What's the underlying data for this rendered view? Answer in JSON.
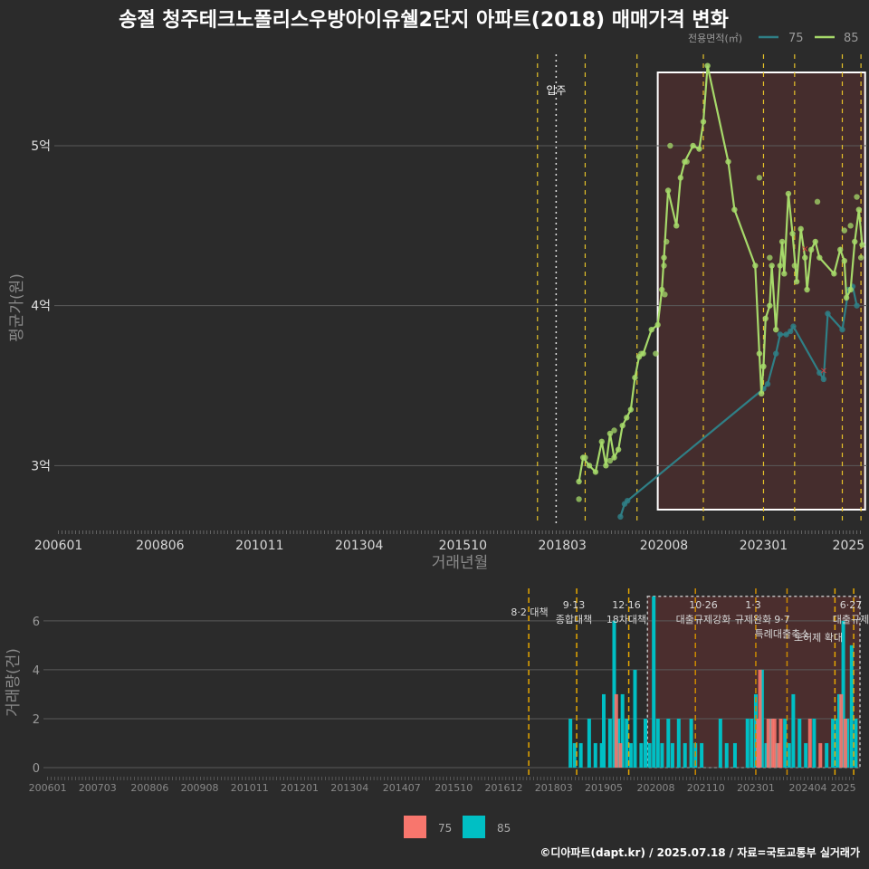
{
  "title": "송절 청주테크노폴리스우방아이유쉘2단지 아파트(2018) 매매가격 변화",
  "credit": "©디아파트(dapt.kr) / 2025.07.18 / 자료=국토교통부 실거래가",
  "colors": {
    "s75": "#2f7f86",
    "s85": "#a6d96a",
    "bar75": "#f8766d",
    "bar85": "#00bfc4",
    "policy": "#e6c229"
  },
  "chart_data": [
    {
      "type": "line",
      "legend_title": "전용면적(㎡)",
      "legend_position": "top-right",
      "xlabel": "거래년월",
      "ylabel": "평균가(원)",
      "x_ticks": [
        "200601",
        "200806",
        "201011",
        "201304",
        "201510",
        "201803",
        "202008",
        "202301",
        "2025"
      ],
      "y_ticks": [
        {
          "value": 3.0,
          "label": "3억"
        },
        {
          "value": 4.0,
          "label": "4억"
        },
        {
          "value": 5.0,
          "label": "5억"
        }
      ],
      "ylim": [
        2.6,
        5.6
      ],
      "xlim": [
        2005.9,
        2025.5
      ],
      "annotation": "입주",
      "grid": true,
      "series": [
        {
          "name": "75",
          "points": [
            [
              2019.55,
              2.68
            ],
            [
              2019.65,
              2.76
            ],
            [
              2019.72,
              2.78
            ],
            [
              2023.0,
              3.48
            ],
            [
              2023.1,
              3.51
            ],
            [
              2023.3,
              3.7
            ],
            [
              2023.4,
              3.82
            ],
            [
              2023.55,
              3.82
            ],
            [
              2023.65,
              3.84
            ],
            [
              2023.72,
              3.87
            ],
            [
              2024.35,
              3.58
            ],
            [
              2024.45,
              3.54
            ],
            [
              2024.55,
              3.95
            ],
            [
              2024.9,
              3.85
            ],
            [
              2025.05,
              4.1
            ],
            [
              2025.15,
              4.12
            ],
            [
              2025.25,
              4.0
            ]
          ]
        },
        {
          "name": "85",
          "points": [
            [
              2018.55,
              2.9
            ],
            [
              2018.65,
              3.05
            ],
            [
              2018.8,
              3.0
            ],
            [
              2018.95,
              2.96
            ],
            [
              2019.1,
              3.15
            ],
            [
              2019.2,
              3.0
            ],
            [
              2019.3,
              3.2
            ],
            [
              2019.4,
              3.05
            ],
            [
              2019.5,
              3.1
            ],
            [
              2019.6,
              3.25
            ],
            [
              2019.7,
              3.3
            ],
            [
              2019.8,
              3.35
            ],
            [
              2019.9,
              3.55
            ],
            [
              2020.0,
              3.68
            ],
            [
              2020.1,
              3.7
            ],
            [
              2020.3,
              3.85
            ],
            [
              2020.45,
              3.88
            ],
            [
              2020.55,
              4.1
            ],
            [
              2020.6,
              4.3
            ],
            [
              2020.7,
              4.72
            ],
            [
              2020.9,
              4.5
            ],
            [
              2021.0,
              4.8
            ],
            [
              2021.1,
              4.9
            ],
            [
              2021.3,
              5.0
            ],
            [
              2021.45,
              4.98
            ],
            [
              2021.55,
              5.15
            ],
            [
              2021.65,
              5.5
            ],
            [
              2022.15,
              4.9
            ],
            [
              2022.3,
              4.6
            ],
            [
              2022.8,
              4.25
            ],
            [
              2022.9,
              3.7
            ],
            [
              2022.95,
              3.45
            ],
            [
              2023.0,
              3.62
            ],
            [
              2023.05,
              3.92
            ],
            [
              2023.15,
              4.0
            ],
            [
              2023.2,
              4.25
            ],
            [
              2023.3,
              3.85
            ],
            [
              2023.4,
              4.25
            ],
            [
              2023.45,
              4.4
            ],
            [
              2023.5,
              4.2
            ],
            [
              2023.6,
              4.7
            ],
            [
              2023.7,
              4.45
            ],
            [
              2023.8,
              4.15
            ],
            [
              2023.9,
              4.48
            ],
            [
              2024.0,
              4.3
            ],
            [
              2024.05,
              4.1
            ],
            [
              2024.15,
              4.35
            ],
            [
              2024.25,
              4.4
            ],
            [
              2024.35,
              4.3
            ],
            [
              2024.7,
              4.2
            ],
            [
              2024.85,
              4.35
            ],
            [
              2024.95,
              4.28
            ],
            [
              2025.0,
              4.05
            ],
            [
              2025.1,
              4.1
            ],
            [
              2025.2,
              4.4
            ],
            [
              2025.3,
              4.6
            ],
            [
              2025.38,
              4.38
            ]
          ]
        }
      ],
      "scatter_extra_85": [
        [
          2018.55,
          2.79
        ],
        [
          2018.7,
          3.05
        ],
        [
          2019.3,
          3.03
        ],
        [
          2019.4,
          3.22
        ],
        [
          2020.05,
          3.7
        ],
        [
          2020.4,
          3.7
        ],
        [
          2020.6,
          4.25
        ],
        [
          2020.62,
          4.07
        ],
        [
          2020.66,
          4.4
        ],
        [
          2020.75,
          5.0
        ],
        [
          2021.15,
          4.9
        ],
        [
          2022.9,
          4.8
        ],
        [
          2023.15,
          4.3
        ],
        [
          2023.75,
          4.25
        ],
        [
          2024.3,
          4.65
        ],
        [
          2024.95,
          4.47
        ],
        [
          2025.1,
          4.5
        ],
        [
          2025.25,
          4.68
        ],
        [
          2025.35,
          4.3
        ]
      ]
    },
    {
      "type": "bar",
      "xlabel": "",
      "ylabel": "거래량(건)",
      "y_ticks": [
        0,
        2,
        4,
        6
      ],
      "ylim": [
        0,
        7
      ],
      "x_ticks": [
        "200601",
        "200703",
        "200806",
        "200908",
        "201011",
        "201201",
        "201304",
        "201407",
        "201510",
        "201612",
        "201803",
        "201905",
        "202008",
        "202110",
        "202301",
        "202404",
        "2025"
      ],
      "legend": [
        "75",
        "85"
      ],
      "legend_position": "bottom",
      "policies": [
        {
          "label": "8·2 대책"
        },
        {
          "label": "9·13\n종합대책"
        },
        {
          "label": "12·16\n18차대책"
        },
        {
          "label": "10·26\n대출규제강화"
        },
        {
          "label": "1·3\n규제완화"
        },
        {
          "label": "9·7\n특례대출축소"
        },
        {
          "label": "토허제 확대"
        },
        {
          "label": "6·27\n대출규제"
        }
      ],
      "series_75": [
        [
          2019.65,
          3
        ],
        [
          2019.75,
          1
        ],
        [
          2023.05,
          2
        ],
        [
          2023.1,
          4
        ],
        [
          2023.3,
          2
        ],
        [
          2023.4,
          2
        ],
        [
          2023.45,
          2
        ],
        [
          2023.55,
          1
        ],
        [
          2023.6,
          2
        ],
        [
          2024.3,
          2
        ],
        [
          2024.55,
          1
        ],
        [
          2025.05,
          3
        ],
        [
          2025.15,
          2
        ]
      ],
      "series_85": [
        [
          2018.55,
          2
        ],
        [
          2018.65,
          1
        ],
        [
          2018.8,
          1
        ],
        [
          2019.0,
          2
        ],
        [
          2019.15,
          1
        ],
        [
          2019.3,
          1
        ],
        [
          2019.35,
          3
        ],
        [
          2019.5,
          2
        ],
        [
          2019.6,
          6
        ],
        [
          2019.7,
          2
        ],
        [
          2019.8,
          3
        ],
        [
          2019.9,
          2
        ],
        [
          2020.0,
          1
        ],
        [
          2020.1,
          4
        ],
        [
          2020.25,
          1
        ],
        [
          2020.35,
          2
        ],
        [
          2020.45,
          1
        ],
        [
          2020.55,
          7
        ],
        [
          2020.65,
          2
        ],
        [
          2020.75,
          1
        ],
        [
          2020.9,
          2
        ],
        [
          2021.0,
          1
        ],
        [
          2021.15,
          2
        ],
        [
          2021.3,
          1
        ],
        [
          2021.45,
          2
        ],
        [
          2021.55,
          1
        ],
        [
          2021.7,
          1
        ],
        [
          2022.15,
          2
        ],
        [
          2022.3,
          1
        ],
        [
          2022.5,
          1
        ],
        [
          2022.8,
          2
        ],
        [
          2022.9,
          2
        ],
        [
          2023.0,
          3
        ],
        [
          2023.15,
          4
        ],
        [
          2023.25,
          1
        ],
        [
          2023.35,
          2
        ],
        [
          2023.5,
          1
        ],
        [
          2023.7,
          2
        ],
        [
          2023.8,
          1
        ],
        [
          2023.9,
          3
        ],
        [
          2024.05,
          2
        ],
        [
          2024.2,
          1
        ],
        [
          2024.4,
          2
        ],
        [
          2024.7,
          1
        ],
        [
          2024.85,
          2
        ],
        [
          2024.95,
          2
        ],
        [
          2025.0,
          3
        ],
        [
          2025.1,
          6
        ],
        [
          2025.2,
          2
        ],
        [
          2025.3,
          5
        ],
        [
          2025.4,
          2
        ]
      ]
    }
  ]
}
